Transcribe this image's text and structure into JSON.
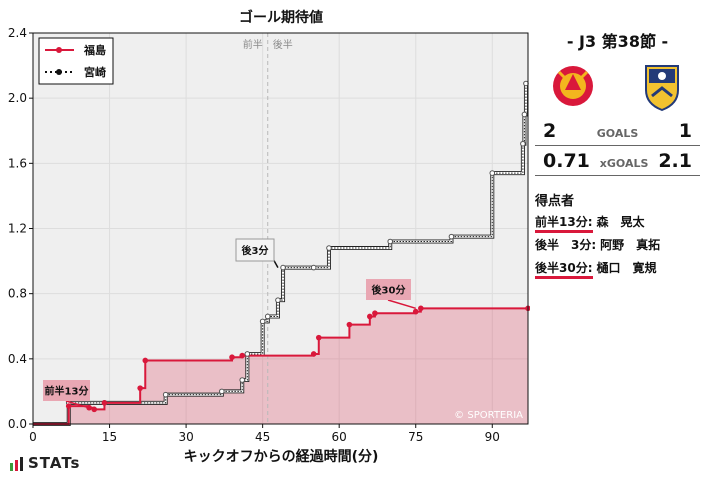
{
  "chart_data": {
    "type": "line",
    "title": "ゴール期待値",
    "xlabel": "キックオフからの経過時間(分)",
    "ylabel": "",
    "xlim": [
      0,
      97
    ],
    "ylim": [
      0,
      2.4
    ],
    "xticks": [
      0,
      15,
      30,
      45,
      60,
      75,
      90
    ],
    "yticks": [
      0.0,
      0.4,
      0.8,
      1.2,
      1.6,
      2.0,
      2.4
    ],
    "grid": true,
    "legend": "top-left",
    "halftime_labels": {
      "first": "前半",
      "second": "後半",
      "minute": 46
    },
    "watermark": "© SPORTERIA",
    "series": [
      {
        "name": "福島",
        "color": "#d9183b",
        "style": "solid",
        "x": [
          0,
          7,
          11,
          12,
          14,
          21,
          22,
          39,
          41,
          55,
          56,
          62,
          66,
          67,
          75,
          76,
          97
        ],
        "y": [
          0,
          0.11,
          0.1,
          0.09,
          0.13,
          0.22,
          0.39,
          0.41,
          0.42,
          0.43,
          0.53,
          0.61,
          0.66,
          0.68,
          0.69,
          0.71,
          0.71
        ]
      },
      {
        "name": "宮崎",
        "color": "#222222",
        "style": "dotted",
        "x": [
          0,
          7,
          14,
          26,
          37,
          41,
          42,
          45,
          46,
          48,
          49,
          55,
          58,
          70,
          82,
          90,
          96,
          96.3,
          96.6
        ],
        "y": [
          0,
          0.13,
          0.13,
          0.18,
          0.2,
          0.27,
          0.43,
          0.63,
          0.66,
          0.76,
          0.96,
          0.96,
          1.08,
          1.12,
          1.15,
          1.54,
          1.72,
          1.9,
          2.09
        ]
      }
    ],
    "goal_annotations": [
      {
        "label": "前半13分",
        "team": "home",
        "x": 12,
        "y": 0.09
      },
      {
        "label": "後3分",
        "team": "away",
        "x": 48,
        "y": 0.96
      },
      {
        "label": "後30分",
        "team": "home",
        "x": 75,
        "y": 0.71
      }
    ]
  },
  "match": {
    "title": "- J3 第38節 -",
    "home": {
      "name": "福島",
      "goals": "2",
      "xg": "0.71",
      "primary": "#d9183b",
      "secondary": "#f3b51e"
    },
    "away": {
      "name": "宮崎",
      "goals": "1",
      "xg": "2.1",
      "primary": "#233a78",
      "secondary": "#f2c230"
    },
    "goals_label": "GOALS",
    "xg_label": "xGOALS"
  },
  "scorers": {
    "title": "得点者",
    "items": [
      {
        "time": "前半13分:",
        "name": "森　晃太",
        "team": "home"
      },
      {
        "time": "後半　3分:",
        "name": "阿野　真拓",
        "team": "away"
      },
      {
        "time": "後半30分:",
        "name": "樋口　寛規",
        "team": "home"
      }
    ]
  },
  "brand": {
    "name": "STATs",
    "bar_colors": [
      "#3a9a3a",
      "#d9183b",
      "#222222"
    ]
  }
}
